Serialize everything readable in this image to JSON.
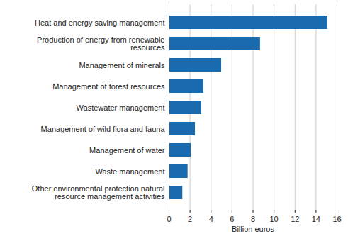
{
  "chart_data": {
    "type": "bar",
    "orientation": "horizontal",
    "categories": [
      "Heat and energy saving management",
      "Production of energy from renewable resources",
      "Management of minerals",
      "Management of forest resources",
      "Wastewater management",
      "Management of wild flora and fauna",
      "Management of water",
      "Waste management",
      "Other environmental protection natural resource management activities"
    ],
    "values": [
      15.1,
      8.7,
      5.0,
      3.3,
      3.1,
      2.5,
      2.1,
      1.8,
      1.3
    ],
    "color": "#1a6aaf",
    "x_label": "Billion euros",
    "xlim": [
      0,
      16
    ],
    "xticks": [
      0,
      2,
      4,
      6,
      8,
      10,
      12,
      14,
      16
    ],
    "grid": true
  }
}
